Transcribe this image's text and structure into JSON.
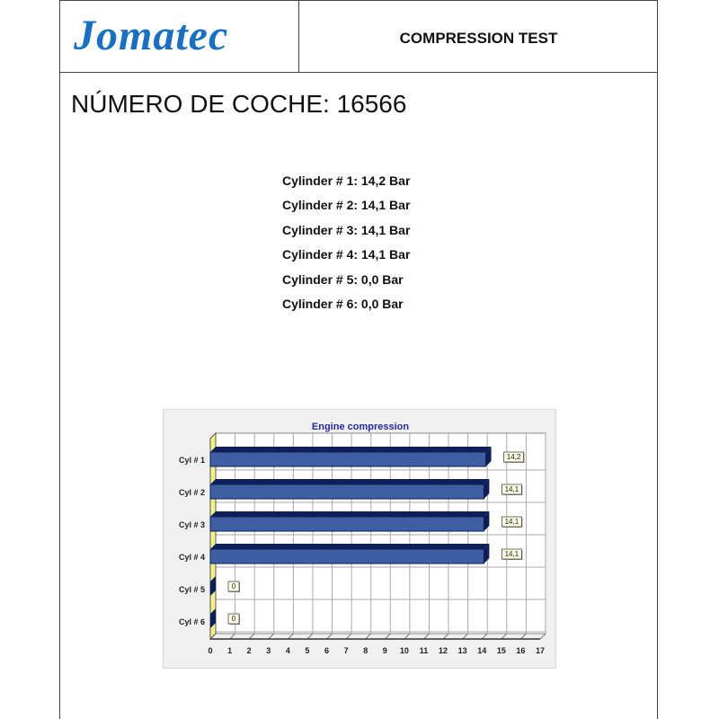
{
  "header": {
    "logo": "Jomatec",
    "title": "COMPRESSION TEST"
  },
  "car_number": "NÚMERO DE COCHE: 16566",
  "readings": [
    "Cylinder # 1: 14,2 Bar",
    "Cylinder # 2: 14,1 Bar",
    "Cylinder # 3: 14,1 Bar",
    "Cylinder # 4: 14,1 Bar",
    "Cylinder # 5:  0,0 Bar",
    "Cylinder # 6:  0,0 Bar"
  ],
  "chart_data": {
    "type": "bar",
    "orientation": "horizontal",
    "title": "Engine compression",
    "categories": [
      "Cyl # 1",
      "Cyl # 2",
      "Cyl # 3",
      "Cyl # 4",
      "Cyl # 5",
      "Cyl # 6"
    ],
    "values": [
      14.2,
      14.1,
      14.1,
      14.1,
      0,
      0
    ],
    "data_labels": [
      "14,2",
      "14,1",
      "14,1",
      "14,1",
      "0",
      "0"
    ],
    "xlim": [
      0,
      17
    ],
    "xticks": [
      0,
      1,
      2,
      3,
      4,
      5,
      6,
      7,
      8,
      9,
      10,
      11,
      12,
      13,
      14,
      15,
      16,
      17
    ],
    "grid": true,
    "colors": {
      "bar": "#3f5fa3",
      "bar_dark": "#0d1f55",
      "title": "#2a2aa0",
      "floor": "#f3f08a"
    }
  }
}
